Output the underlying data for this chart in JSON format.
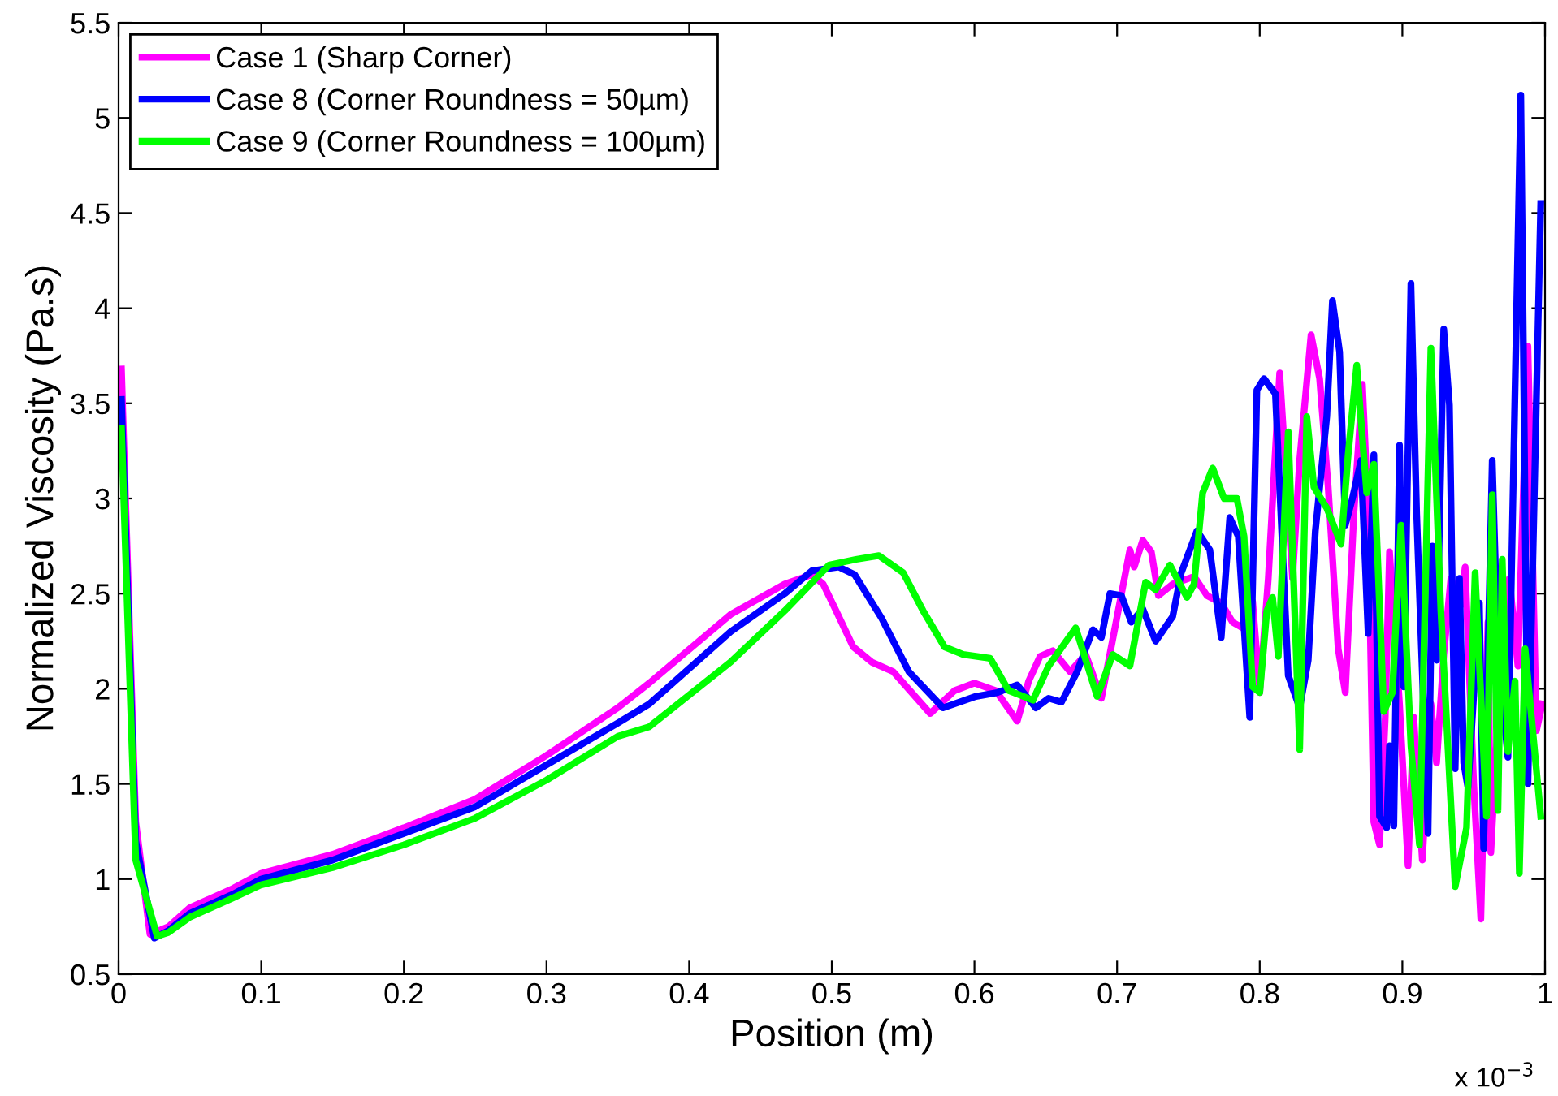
{
  "chart_data": {
    "type": "line",
    "xlabel": "Position (m)",
    "ylabel": "Normalized Viscosity (Pa.s)",
    "xlim": [
      0,
      1
    ],
    "ylim": [
      0.5,
      5.5
    ],
    "xticks": [
      0,
      0.1,
      0.2,
      0.3,
      0.4,
      0.5,
      0.6,
      0.7,
      0.8,
      0.9,
      1
    ],
    "yticks": [
      0.5,
      1,
      1.5,
      2,
      2.5,
      3,
      3.5,
      4,
      4.5,
      5,
      5.5
    ],
    "grid": false,
    "legend": "top left",
    "marker": "none",
    "line_style": "solid",
    "annotations": [
      "x 10$^{−3}$"
    ],
    "series": [
      {
        "name": "Case 1 (Sharp Corner)",
        "color": "#ff00ff",
        "x": [
          0.002,
          0.012,
          0.022,
          0.035,
          0.05,
          0.08,
          0.1,
          0.15,
          0.2,
          0.25,
          0.3,
          0.35,
          0.372,
          0.429,
          0.467,
          0.486,
          0.494,
          0.503,
          0.515,
          0.528,
          0.543,
          0.569,
          0.586,
          0.6,
          0.615,
          0.63,
          0.638,
          0.646,
          0.655,
          0.667,
          0.678,
          0.689,
          0.709,
          0.712,
          0.718,
          0.724,
          0.729,
          0.739,
          0.754,
          0.763,
          0.773,
          0.781,
          0.788,
          0.795,
          0.8,
          0.806,
          0.814,
          0.823,
          0.828,
          0.836,
          0.842,
          0.848,
          0.855,
          0.86,
          0.866,
          0.872,
          0.876,
          0.88,
          0.884,
          0.888,
          0.891,
          0.898,
          0.904,
          0.908,
          0.914,
          0.92,
          0.924,
          0.929,
          0.934,
          0.941,
          0.944,
          0.95,
          0.955,
          0.96,
          0.962,
          0.967,
          0.975,
          0.981,
          0.988,
          0.994,
          0.998
        ],
        "values": [
          3.68,
          1.3,
          0.71,
          0.75,
          0.85,
          0.95,
          1.03,
          1.13,
          1.27,
          1.42,
          1.65,
          1.9,
          2.03,
          2.39,
          2.55,
          2.6,
          2.55,
          2.41,
          2.22,
          2.14,
          2.09,
          1.87,
          1.99,
          2.03,
          1.99,
          1.83,
          2.04,
          2.17,
          2.2,
          2.09,
          2.18,
          1.95,
          2.73,
          2.64,
          2.78,
          2.72,
          2.49,
          2.55,
          2.59,
          2.49,
          2.45,
          2.35,
          2.32,
          2.46,
          1.98,
          2.58,
          3.66,
          2.58,
          3.2,
          3.86,
          3.63,
          3.06,
          2.21,
          1.98,
          2.92,
          3.6,
          2.92,
          1.3,
          1.18,
          1.85,
          2.72,
          1.92,
          1.07,
          1.85,
          1.1,
          1.92,
          1.61,
          2.18,
          2.58,
          2.44,
          2.64,
          1.5,
          0.79,
          2.35,
          1.14,
          1.85,
          2.58,
          2.12,
          3.8,
          1.78,
          1.92
        ]
      },
      {
        "name": "Case 8 (Corner Roundness = 50µm)",
        "color": "#0000ff",
        "x": [
          0.002,
          0.012,
          0.025,
          0.035,
          0.05,
          0.08,
          0.1,
          0.15,
          0.2,
          0.25,
          0.3,
          0.35,
          0.372,
          0.429,
          0.467,
          0.486,
          0.505,
          0.516,
          0.535,
          0.554,
          0.578,
          0.601,
          0.616,
          0.63,
          0.643,
          0.652,
          0.661,
          0.672,
          0.683,
          0.689,
          0.695,
          0.703,
          0.71,
          0.718,
          0.727,
          0.739,
          0.745,
          0.756,
          0.765,
          0.773,
          0.779,
          0.785,
          0.793,
          0.798,
          0.803,
          0.811,
          0.82,
          0.828,
          0.834,
          0.839,
          0.847,
          0.851,
          0.856,
          0.86,
          0.865,
          0.871,
          0.876,
          0.88,
          0.884,
          0.889,
          0.891,
          0.894,
          0.898,
          0.901,
          0.906,
          0.91,
          0.918,
          0.921,
          0.924,
          0.929,
          0.933,
          0.937,
          0.94,
          0.943,
          0.946,
          0.954,
          0.957,
          0.963,
          0.967,
          0.974,
          0.983,
          0.988,
          0.997
        ],
        "values": [
          3.52,
          1.2,
          0.69,
          0.73,
          0.82,
          0.92,
          1.0,
          1.1,
          1.24,
          1.38,
          1.6,
          1.82,
          1.92,
          2.3,
          2.5,
          2.62,
          2.64,
          2.6,
          2.37,
          2.09,
          1.9,
          1.96,
          1.98,
          2.02,
          1.9,
          1.95,
          1.93,
          2.09,
          2.31,
          2.27,
          2.5,
          2.49,
          2.35,
          2.42,
          2.25,
          2.38,
          2.61,
          2.83,
          2.73,
          2.27,
          2.9,
          2.8,
          1.85,
          3.57,
          3.63,
          3.55,
          2.07,
          1.9,
          2.15,
          2.83,
          3.43,
          4.04,
          3.77,
          2.86,
          3.0,
          3.2,
          2.29,
          3.23,
          1.33,
          1.27,
          1.7,
          1.28,
          3.28,
          2.01,
          4.13,
          2.92,
          1.24,
          2.75,
          2.15,
          3.89,
          3.49,
          1.58,
          2.58,
          1.61,
          1.48,
          2.45,
          1.16,
          3.2,
          2.18,
          1.64,
          5.12,
          1.5,
          4.55
        ]
      },
      {
        "name": "Case 9 (Corner Roundness = 100µm)",
        "color": "#00ff00",
        "x": [
          0.002,
          0.012,
          0.027,
          0.035,
          0.05,
          0.08,
          0.1,
          0.15,
          0.2,
          0.25,
          0.3,
          0.35,
          0.372,
          0.429,
          0.467,
          0.498,
          0.517,
          0.533,
          0.55,
          0.564,
          0.579,
          0.592,
          0.611,
          0.624,
          0.641,
          0.652,
          0.671,
          0.686,
          0.697,
          0.703,
          0.709,
          0.72,
          0.727,
          0.737,
          0.749,
          0.754,
          0.76,
          0.767,
          0.775,
          0.784,
          0.789,
          0.795,
          0.8,
          0.805,
          0.809,
          0.813,
          0.82,
          0.828,
          0.833,
          0.838,
          0.847,
          0.857,
          0.862,
          0.868,
          0.875,
          0.88,
          0.887,
          0.893,
          0.899,
          0.906,
          0.912,
          0.92,
          0.927,
          0.937,
          0.945,
          0.951,
          0.959,
          0.963,
          0.967,
          0.97,
          0.974,
          0.979,
          0.982,
          0.986,
          0.997
        ],
        "values": [
          3.37,
          1.1,
          0.7,
          0.72,
          0.8,
          0.9,
          0.97,
          1.06,
          1.18,
          1.32,
          1.52,
          1.75,
          1.8,
          2.14,
          2.41,
          2.65,
          2.68,
          2.7,
          2.61,
          2.41,
          2.22,
          2.18,
          2.16,
          1.99,
          1.94,
          2.12,
          2.32,
          1.96,
          2.18,
          2.15,
          2.12,
          2.56,
          2.52,
          2.65,
          2.48,
          2.55,
          3.03,
          3.16,
          3.0,
          3.0,
          2.8,
          2.01,
          1.98,
          2.41,
          2.48,
          2.17,
          3.35,
          1.68,
          3.43,
          3.06,
          2.95,
          2.76,
          3.23,
          3.7,
          3.03,
          3.18,
          1.88,
          1.98,
          2.86,
          1.7,
          1.18,
          3.79,
          2.41,
          0.96,
          1.27,
          2.61,
          1.33,
          3.02,
          1.36,
          2.68,
          1.67,
          2.04,
          1.03,
          2.21,
          1.33
        ]
      }
    ]
  }
}
